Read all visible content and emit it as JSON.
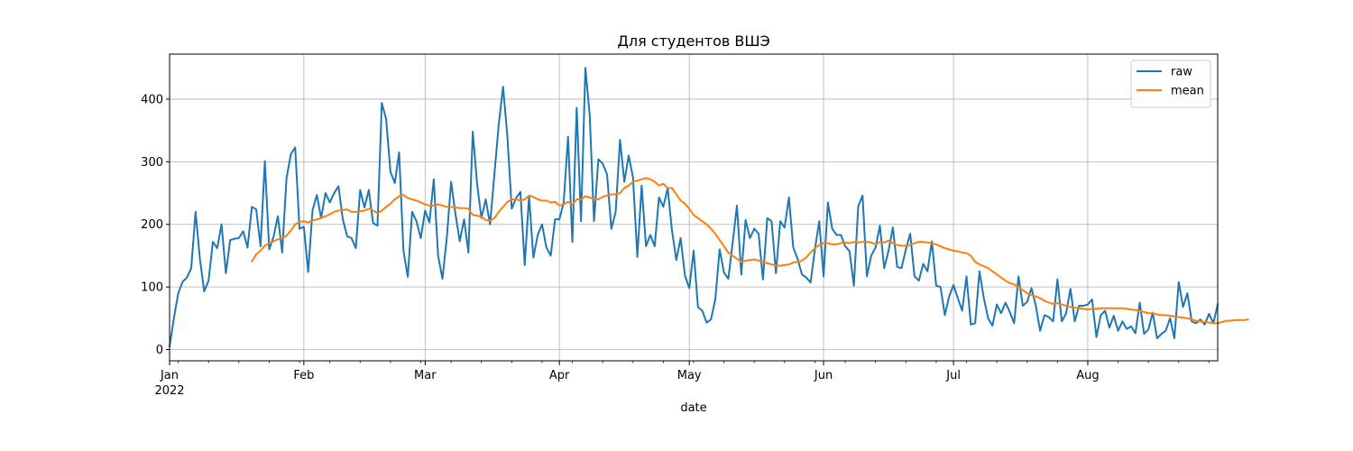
{
  "chart_data": {
    "type": "line",
    "title": "Для студентов ВШЭ",
    "xlabel": "date",
    "ylabel": "",
    "x_start": "2022-01-01",
    "x_end": "2022-08-31",
    "xlim": [
      "2022-01-01",
      "2022-08-31"
    ],
    "ylim": [
      -18,
      472
    ],
    "yticks": [
      0,
      100,
      200,
      300,
      400
    ],
    "xticks": [
      {
        "date": "2022-01-01",
        "label": "Jan",
        "sublabel": "2022"
      },
      {
        "date": "2022-02-01",
        "label": "Feb",
        "sublabel": ""
      },
      {
        "date": "2022-03-01",
        "label": "Mar",
        "sublabel": ""
      },
      {
        "date": "2022-04-01",
        "label": "Apr",
        "sublabel": ""
      },
      {
        "date": "2022-05-01",
        "label": "May",
        "sublabel": ""
      },
      {
        "date": "2022-06-01",
        "label": "Jun",
        "sublabel": ""
      },
      {
        "date": "2022-07-01",
        "label": "Jul",
        "sublabel": ""
      },
      {
        "date": "2022-08-01",
        "label": "Aug",
        "sublabel": ""
      }
    ],
    "grid": true,
    "legend_position": "top-right",
    "series": [
      {
        "name": "raw",
        "color": "#1f77b4",
        "values": [
          5,
          50,
          90,
          108,
          115,
          130,
          220,
          145,
          93,
          110,
          172,
          162,
          200,
          122,
          175,
          177,
          178,
          189,
          163,
          228,
          224,
          165,
          301,
          160,
          180,
          213,
          155,
          274,
          312,
          323,
          193,
          196,
          124,
          222,
          247,
          210,
          250,
          235,
          250,
          261,
          208,
          181,
          178,
          162,
          255,
          227,
          255,
          202,
          198,
          394,
          368,
          284,
          266,
          315,
          158,
          116,
          220,
          205,
          178,
          222,
          203,
          272,
          150,
          113,
          178,
          268,
          217,
          173,
          208,
          155,
          348,
          265,
          210,
          240,
          200,
          280,
          360,
          420,
          340,
          225,
          242,
          252,
          135,
          245,
          147,
          183,
          200,
          163,
          150,
          208,
          208,
          235,
          340,
          172,
          386,
          205,
          450,
          375,
          205,
          304,
          297,
          280,
          193,
          220,
          335,
          268,
          310,
          275,
          148,
          262,
          165,
          183,
          165,
          243,
          228,
          258,
          190,
          143,
          178,
          118,
          98,
          158,
          68,
          62,
          43,
          48,
          80,
          160,
          123,
          113,
          170,
          230,
          120,
          207,
          178,
          193,
          185,
          112,
          210,
          205,
          122,
          205,
          195,
          243,
          163,
          145,
          120,
          115,
          107,
          160,
          205,
          117,
          235,
          193,
          183,
          183,
          165,
          157,
          102,
          229,
          246,
          117,
          150,
          163,
          198,
          130,
          158,
          195,
          132,
          130,
          160,
          185,
          117,
          110,
          137,
          125,
          173,
          102,
          100,
          55,
          85,
          103,
          82,
          62,
          117,
          40,
          42,
          125,
          82,
          50,
          38,
          72,
          58,
          75,
          60,
          42,
          117,
          70,
          76,
          98,
          70,
          30,
          55,
          52,
          45,
          112,
          45,
          58,
          97,
          45,
          70,
          70,
          72,
          80,
          20,
          55,
          62,
          35,
          54,
          30,
          45,
          33,
          37,
          26,
          75,
          25,
          32,
          59,
          18,
          25,
          30,
          50,
          18,
          108,
          68,
          90,
          45,
          42,
          48,
          40,
          57,
          42,
          72
        ]
      },
      {
        "name": "mean",
        "color": "#ff7f0e",
        "values": [
          null,
          null,
          null,
          null,
          null,
          null,
          null,
          null,
          null,
          null,
          null,
          null,
          null,
          null,
          null,
          null,
          null,
          null,
          null,
          141,
          152,
          158,
          166,
          170,
          173,
          176,
          178,
          182,
          190,
          200,
          204,
          205,
          203,
          206,
          208,
          210,
          213,
          216,
          220,
          222,
          223,
          224,
          220,
          220,
          221,
          222,
          225,
          222,
          218,
          222,
          228,
          233,
          240,
          245,
          247,
          242,
          240,
          238,
          235,
          232,
          230,
          230,
          232,
          230,
          228,
          228,
          227,
          226,
          226,
          225,
          215,
          214,
          212,
          207,
          206,
          210,
          220,
          228,
          236,
          240,
          240,
          238,
          240,
          246,
          244,
          240,
          238,
          238,
          235,
          236,
          230,
          232,
          236,
          232,
          240,
          240,
          245,
          243,
          240,
          240,
          244,
          246,
          248,
          248,
          250,
          258,
          262,
          268,
          270,
          272,
          274,
          272,
          268,
          262,
          265,
          258,
          258,
          248,
          238,
          233,
          225,
          215,
          210,
          205,
          200,
          193,
          185,
          175,
          165,
          155,
          150,
          145,
          140,
          142,
          143,
          144,
          142,
          140,
          138,
          136,
          134,
          134,
          135,
          136,
          139,
          140,
          142,
          147,
          155,
          162,
          167,
          170,
          170,
          168,
          168,
          170,
          171,
          170,
          172,
          171,
          172,
          172,
          171,
          168,
          172,
          171,
          174,
          170,
          167,
          166,
          166,
          167,
          170,
          172,
          172,
          171,
          170,
          168,
          165,
          162,
          160,
          158,
          157,
          155,
          154,
          150,
          140,
          136,
          133,
          130,
          125,
          120,
          115,
          110,
          106,
          104,
          100,
          95,
          90,
          87,
          85,
          82,
          78,
          75,
          73,
          74,
          72,
          70,
          68,
          67,
          66,
          65,
          64,
          65,
          65,
          66,
          66,
          66,
          66,
          66,
          66,
          65,
          64,
          63,
          62,
          60,
          58,
          58,
          56,
          55,
          55,
          54,
          53,
          52,
          51,
          50,
          48,
          46,
          45,
          44,
          43,
          42,
          42,
          44,
          46,
          46,
          47,
          47,
          47,
          48
        ]
      }
    ]
  }
}
